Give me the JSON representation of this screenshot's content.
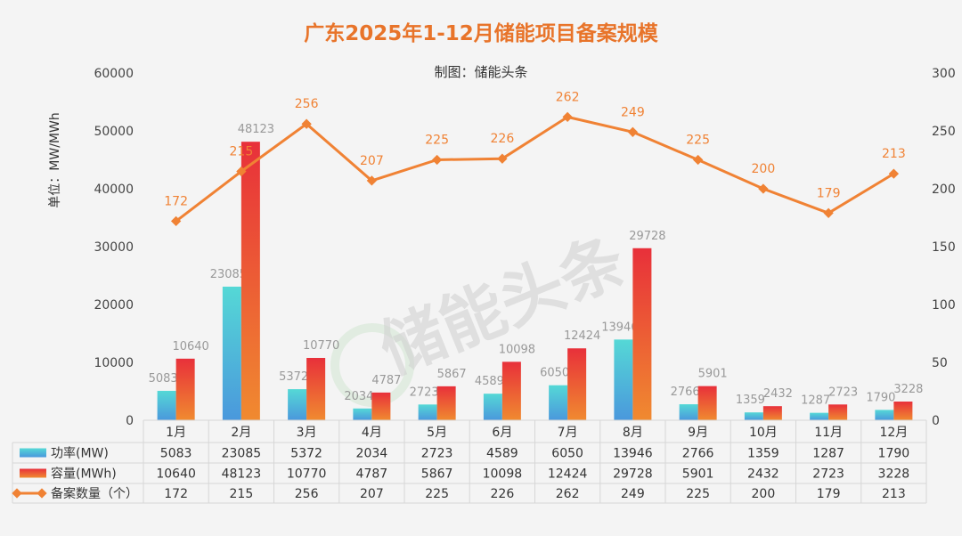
{
  "chart_data": {
    "type": "bar",
    "title": "广东2025年1-12月储能项目备案规模",
    "subtitle": "制图：储能头条",
    "ylabel": "单位：MW/MWh",
    "watermark": "储能头条",
    "categories": [
      "1月",
      "2月",
      "3月",
      "4月",
      "5月",
      "6月",
      "7月",
      "8月",
      "9月",
      "10月",
      "11月",
      "12月"
    ],
    "ylim": [
      0,
      60000
    ],
    "y_ticks": [
      "0",
      "10000",
      "20000",
      "30000",
      "40000",
      "50000",
      "60000"
    ],
    "y2lim": [
      0,
      300
    ],
    "y2_ticks": [
      "0",
      "50",
      "100",
      "150",
      "200",
      "250",
      "300"
    ],
    "series": [
      {
        "name": "功率(MW)",
        "type": "bar",
        "axis": "left",
        "values": [
          5083,
          23085,
          5372,
          2034,
          2723,
          4589,
          6050,
          13946,
          2766,
          1359,
          1287,
          1790
        ]
      },
      {
        "name": "容量(MWh)",
        "type": "bar",
        "axis": "left",
        "values": [
          10640,
          48123,
          10770,
          4787,
          5867,
          10098,
          12424,
          29728,
          5901,
          2432,
          2723,
          3228
        ]
      },
      {
        "name": "备案数量（个）",
        "type": "line",
        "axis": "right",
        "values": [
          172,
          215,
          256,
          207,
          225,
          226,
          262,
          249,
          225,
          200,
          179,
          213
        ]
      }
    ],
    "legend": "data-table-left",
    "colors": {
      "power": "#4fd2d4",
      "capacity": "#e8323a",
      "count": "#f08234",
      "title": "#e8742a"
    }
  }
}
